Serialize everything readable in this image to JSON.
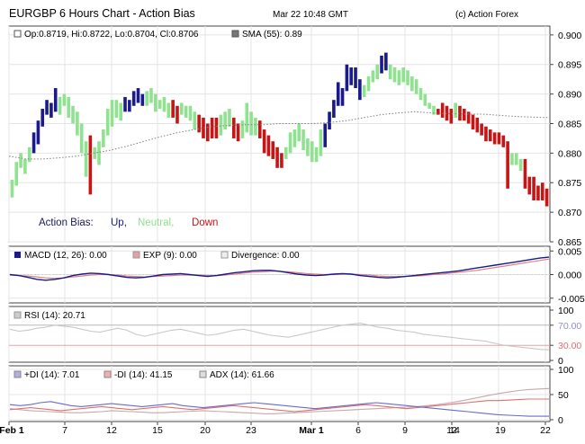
{
  "header": {
    "title": "EURGBP 6 Hours Chart - Action Bias",
    "timestamp": "Mar 22 10:48 GMT",
    "credit": "(c) Action Forex"
  },
  "colors": {
    "up": "#1a1a8c",
    "neutral": "#8fe28f",
    "down": "#c81414",
    "sma": "#808080",
    "macd": "#1a1a8c",
    "exp": "#e08080",
    "rsi": "#9090d0",
    "plus_di": "#6a6acc",
    "minus_di": "#e07070",
    "adx": "#b0b0b0"
  },
  "chart_data": [
    {
      "type": "ohlc-bar",
      "legend": {
        "price": "Op:0.8719, Hi:0.8722, Lo:0.8704, Cl:0.8706",
        "sma": "SMA (55): 0.89"
      },
      "bias_legend": {
        "label": "Action Bias:",
        "up": "Up,",
        "neutral": "Neutral,",
        "down": "Down"
      },
      "yticks": [
        "0.900",
        "0.895",
        "0.890",
        "0.885",
        "0.880",
        "0.875",
        "0.870",
        "0.865"
      ],
      "ylim": [
        0.865,
        0.9015
      ],
      "x_tick_labels": [
        "Feb 1",
        "7",
        "12",
        "15",
        "20",
        "23",
        "Mar 1",
        "6",
        "9",
        "12",
        "14",
        "19",
        "22"
      ],
      "bars": [
        [
          0.8755,
          0.8725,
          "n"
        ],
        [
          0.8785,
          0.8745,
          "n"
        ],
        [
          0.88,
          0.8775,
          "n"
        ],
        [
          0.879,
          0.8765,
          "n"
        ],
        [
          0.881,
          0.8785,
          "n"
        ],
        [
          0.8835,
          0.88,
          "u"
        ],
        [
          0.8855,
          0.8815,
          "u"
        ],
        [
          0.8875,
          0.8845,
          "u"
        ],
        [
          0.889,
          0.8865,
          "u"
        ],
        [
          0.8885,
          0.886,
          "u"
        ],
        [
          0.891,
          0.887,
          "u"
        ],
        [
          0.8895,
          0.8865,
          "n"
        ],
        [
          0.89,
          0.888,
          "n"
        ],
        [
          0.8895,
          0.886,
          "n"
        ],
        [
          0.888,
          0.885,
          "n"
        ],
        [
          0.887,
          0.883,
          "n"
        ],
        [
          0.885,
          0.88,
          "n"
        ],
        [
          0.882,
          0.876,
          "n"
        ],
        [
          0.883,
          0.873,
          "d"
        ],
        [
          0.881,
          0.879,
          "n"
        ],
        [
          0.882,
          0.878,
          "n"
        ],
        [
          0.884,
          0.881,
          "n"
        ],
        [
          0.8875,
          0.883,
          "n"
        ],
        [
          0.889,
          0.8845,
          "n"
        ],
        [
          0.889,
          0.886,
          "n"
        ],
        [
          0.8885,
          0.8855,
          "n"
        ],
        [
          0.8895,
          0.887,
          "u"
        ],
        [
          0.889,
          0.887,
          "u"
        ],
        [
          0.8905,
          0.888,
          "u"
        ],
        [
          0.891,
          0.8885,
          "u"
        ],
        [
          0.89,
          0.888,
          "u"
        ],
        [
          0.8905,
          0.888,
          "n"
        ],
        [
          0.891,
          0.8885,
          "n"
        ],
        [
          0.89,
          0.887,
          "n"
        ],
        [
          0.889,
          0.8875,
          "n"
        ],
        [
          0.8895,
          0.887,
          "n"
        ],
        [
          0.8885,
          0.886,
          "n"
        ],
        [
          0.889,
          0.886,
          "d"
        ],
        [
          0.888,
          0.885,
          "d"
        ],
        [
          0.8885,
          0.8865,
          "n"
        ],
        [
          0.888,
          0.886,
          "n"
        ],
        [
          0.888,
          0.8855,
          "n"
        ],
        [
          0.887,
          0.884,
          "n"
        ],
        [
          0.8865,
          0.8835,
          "d"
        ],
        [
          0.886,
          0.8825,
          "d"
        ],
        [
          0.885,
          0.882,
          "d"
        ],
        [
          0.886,
          0.8825,
          "d"
        ],
        [
          0.886,
          0.8825,
          "d"
        ],
        [
          0.8865,
          0.883,
          "n"
        ],
        [
          0.887,
          0.884,
          "n"
        ],
        [
          0.8875,
          0.8845,
          "n"
        ],
        [
          0.886,
          0.8825,
          "d"
        ],
        [
          0.885,
          0.882,
          "d"
        ],
        [
          0.8855,
          0.8825,
          "n"
        ],
        [
          0.8885,
          0.8835,
          "n"
        ],
        [
          0.887,
          0.883,
          "n"
        ],
        [
          0.886,
          0.883,
          "n"
        ],
        [
          0.8855,
          0.8825,
          "d"
        ],
        [
          0.884,
          0.88,
          "d"
        ],
        [
          0.883,
          0.8795,
          "d"
        ],
        [
          0.882,
          0.879,
          "d"
        ],
        [
          0.881,
          0.8775,
          "d"
        ],
        [
          0.88,
          0.8775,
          "d"
        ],
        [
          0.881,
          0.879,
          "n"
        ],
        [
          0.8835,
          0.88,
          "n"
        ],
        [
          0.884,
          0.881,
          "n"
        ],
        [
          0.885,
          0.882,
          "n"
        ],
        [
          0.884,
          0.8805,
          "n"
        ],
        [
          0.8825,
          0.8795,
          "n"
        ],
        [
          0.882,
          0.8785,
          "n"
        ],
        [
          0.881,
          0.8785,
          "n"
        ],
        [
          0.884,
          0.8795,
          "n"
        ],
        [
          0.885,
          0.881,
          "u"
        ],
        [
          0.887,
          0.884,
          "u"
        ],
        [
          0.889,
          0.886,
          "u"
        ],
        [
          0.892,
          0.888,
          "u"
        ],
        [
          0.891,
          0.888,
          "u"
        ],
        [
          0.895,
          0.8905,
          "u"
        ],
        [
          0.8945,
          0.8915,
          "u"
        ],
        [
          0.8945,
          0.891,
          "u"
        ],
        [
          0.8925,
          0.889,
          "u"
        ],
        [
          0.8915,
          0.8895,
          "n"
        ],
        [
          0.893,
          0.8905,
          "n"
        ],
        [
          0.894,
          0.892,
          "n"
        ],
        [
          0.895,
          0.8925,
          "n"
        ],
        [
          0.8965,
          0.8935,
          "u"
        ],
        [
          0.897,
          0.894,
          "u"
        ],
        [
          0.895,
          0.8925,
          "n"
        ],
        [
          0.8945,
          0.892,
          "n"
        ],
        [
          0.894,
          0.8915,
          "n"
        ],
        [
          0.8945,
          0.892,
          "n"
        ],
        [
          0.894,
          0.8915,
          "n"
        ],
        [
          0.893,
          0.8905,
          "n"
        ],
        [
          0.8925,
          0.89,
          "n"
        ],
        [
          0.891,
          0.889,
          "n"
        ],
        [
          0.89,
          0.888,
          "n"
        ],
        [
          0.8885,
          0.8875,
          "n"
        ],
        [
          0.888,
          0.8865,
          "n"
        ],
        [
          0.8875,
          0.8865,
          "d"
        ],
        [
          0.8885,
          0.886,
          "d"
        ],
        [
          0.888,
          0.8855,
          "d"
        ],
        [
          0.8875,
          0.885,
          "d"
        ],
        [
          0.8885,
          0.886,
          "n"
        ],
        [
          0.888,
          0.8855,
          "d"
        ],
        [
          0.8875,
          0.8855,
          "d"
        ],
        [
          0.887,
          0.885,
          "d"
        ],
        [
          0.8865,
          0.884,
          "d"
        ],
        [
          0.886,
          0.8835,
          "d"
        ],
        [
          0.885,
          0.883,
          "d"
        ],
        [
          0.8845,
          0.882,
          "d"
        ],
        [
          0.884,
          0.882,
          "d"
        ],
        [
          0.8835,
          0.8815,
          "d"
        ],
        [
          0.8835,
          0.8815,
          "d"
        ],
        [
          0.883,
          0.881,
          "d"
        ],
        [
          0.882,
          0.874,
          "d"
        ],
        [
          0.88,
          0.878,
          "n"
        ],
        [
          0.88,
          0.878,
          "n"
        ],
        [
          0.879,
          0.877,
          "n"
        ],
        [
          0.879,
          0.874,
          "d"
        ],
        [
          0.876,
          0.873,
          "d"
        ],
        [
          0.876,
          0.872,
          "d"
        ],
        [
          0.8745,
          0.872,
          "d"
        ],
        [
          0.875,
          0.872,
          "d"
        ],
        [
          0.874,
          0.871,
          "d"
        ]
      ],
      "sma": [
        0.8795,
        0.879,
        0.879,
        0.8792,
        0.8795,
        0.88,
        0.8805,
        0.8812,
        0.882,
        0.8828,
        0.8835,
        0.884,
        0.8845,
        0.8847,
        0.8848,
        0.8848,
        0.885,
        0.885,
        0.885,
        0.8852,
        0.8855,
        0.886,
        0.8865,
        0.8868,
        0.887,
        0.8868,
        0.8867,
        0.8866,
        0.8866,
        0.8864,
        0.8862,
        0.8861,
        0.886
      ]
    },
    {
      "type": "line",
      "legend": {
        "macd": "MACD (12, 26): 0.00",
        "exp": "EXP (9): 0.00",
        "div": "Divergence: 0.00"
      },
      "yticks": [
        "0.005",
        "0.000",
        "-0.005"
      ],
      "ylim": [
        -0.006,
        0.006
      ],
      "macd": [
        0.0,
        -0.0002,
        -0.0006,
        -0.001,
        -0.0012,
        -0.001,
        -0.0007,
        -0.0002,
        0.0001,
        0.0003,
        0.0002,
        0.0,
        -0.0003,
        -0.0006,
        -0.0007,
        -0.0006,
        -0.0003,
        0.0,
        0.0001,
        0.0002,
        0.0,
        -0.0002,
        -0.0004,
        -0.0002,
        0.0001,
        0.0004,
        0.0006,
        0.0008,
        0.0009,
        0.0009,
        0.0007,
        0.0004,
        0.0001,
        -0.0001,
        -0.0002,
        -0.0001,
        0.0001,
        0.0002,
        0.0001,
        -0.0002,
        -0.0004,
        -0.0006,
        -0.0007,
        -0.0006,
        -0.0004,
        -0.0002,
        0.0,
        0.0002,
        0.0004,
        0.0006,
        0.0008,
        0.0011,
        0.0014,
        0.0017,
        0.002,
        0.0023,
        0.0026,
        0.0029,
        0.0032,
        0.0035,
        0.0037
      ],
      "exp": [
        -0.0001,
        -0.0002,
        -0.0003,
        -0.0005,
        -0.0007,
        -0.0008,
        -0.0007,
        -0.0005,
        -0.0003,
        -0.0001,
        0.0,
        0.0,
        -0.0001,
        -0.0003,
        -0.0004,
        -0.0005,
        -0.0004,
        -0.0003,
        -0.0002,
        -0.0001,
        -0.0001,
        -0.0001,
        -0.0002,
        -0.0002,
        -0.0001,
        0.0001,
        0.0003,
        0.0005,
        0.0006,
        0.0007,
        0.0007,
        0.0006,
        0.0004,
        0.0002,
        0.0001,
        0.0,
        0.0,
        0.0001,
        0.0001,
        0.0,
        -0.0001,
        -0.0003,
        -0.0004,
        -0.0004,
        -0.0004,
        -0.0003,
        -0.0002,
        0.0,
        0.0001,
        0.0003,
        0.0005,
        0.0007,
        0.0009,
        0.0012,
        0.0015,
        0.0018,
        0.0021,
        0.0024,
        0.0027,
        0.003,
        0.0033
      ]
    },
    {
      "type": "line",
      "legend": {
        "rsi": "RSI (14): 20.71"
      },
      "yticks": [
        "100",
        "70.00",
        "30.00",
        "0"
      ],
      "ylim": [
        0,
        100
      ],
      "rsi": [
        62,
        58,
        60,
        64,
        66,
        70,
        68,
        66,
        62,
        58,
        56,
        60,
        64,
        60,
        52,
        48,
        52,
        56,
        60,
        62,
        58,
        54,
        50,
        52,
        56,
        60,
        62,
        58,
        54,
        50,
        48,
        46,
        50,
        54,
        58,
        62,
        66,
        70,
        72,
        74,
        70,
        66,
        64,
        60,
        58,
        56,
        52,
        50,
        48,
        46,
        44,
        42,
        40,
        38,
        34,
        30,
        28,
        26,
        24,
        22,
        21
      ]
    },
    {
      "type": "line",
      "legend": {
        "plus_di": "+DI (14): 7.01",
        "minus_di": "-DI (14): 41.15",
        "adx": "ADX (14): 61.66"
      },
      "yticks": [
        "100",
        "50",
        "0"
      ],
      "ylim": [
        0,
        100
      ],
      "plus_di": [
        30,
        28,
        30,
        34,
        36,
        32,
        28,
        26,
        28,
        30,
        32,
        30,
        28,
        26,
        28,
        30,
        32,
        28,
        26,
        24,
        26,
        28,
        30,
        32,
        34,
        32,
        30,
        28,
        26,
        24,
        22,
        24,
        26,
        28,
        30,
        32,
        34,
        32,
        30,
        28,
        26,
        24,
        22,
        20,
        18,
        16,
        14,
        12,
        10,
        9,
        8,
        7,
        7,
        7
      ],
      "minus_di": [
        20,
        22,
        24,
        22,
        20,
        18,
        20,
        22,
        24,
        26,
        24,
        22,
        20,
        22,
        24,
        26,
        24,
        22,
        20,
        22,
        24,
        26,
        28,
        26,
        24,
        22,
        20,
        18,
        16,
        18,
        20,
        22,
        24,
        26,
        28,
        30,
        28,
        26,
        24,
        22,
        24,
        26,
        28,
        30,
        32,
        34,
        36,
        38,
        38,
        39,
        40,
        41,
        41,
        41
      ],
      "adx": [
        22,
        20,
        18,
        17,
        16,
        15,
        14,
        14,
        15,
        16,
        18,
        17,
        16,
        15,
        14,
        14,
        15,
        16,
        17,
        18,
        17,
        16,
        15,
        14,
        13,
        12,
        12,
        13,
        14,
        15,
        16,
        17,
        18,
        19,
        20,
        21,
        22,
        23,
        24,
        25,
        26,
        28,
        30,
        33,
        36,
        40,
        44,
        48,
        52,
        55,
        58,
        60,
        61,
        62
      ]
    }
  ]
}
